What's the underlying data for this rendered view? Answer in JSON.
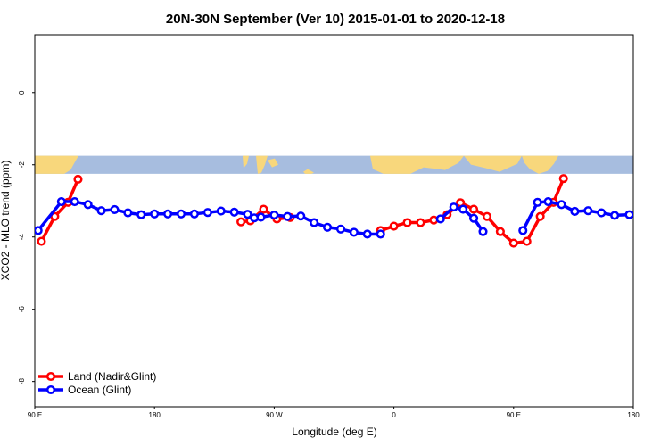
{
  "chart_data": {
    "type": "line",
    "title": "20N-30N September (Ver 10)   2015-01-01 to 2020-12-18",
    "xlabel": "Longitude (deg E)",
    "ylabel": "XCO2 - MLO trend (ppm)",
    "xlim": [
      90,
      540
    ],
    "ylim": [
      -8.7,
      1.6
    ],
    "x_ticks": [
      {
        "value": 90,
        "label": "90 E"
      },
      {
        "value": 180,
        "label": "180"
      },
      {
        "value": 270,
        "label": "90 W"
      },
      {
        "value": 360,
        "label": "0"
      },
      {
        "value": 450,
        "label": "90 E"
      },
      {
        "value": 540,
        "label": "180"
      }
    ],
    "y_ticks": [
      {
        "value": 0,
        "label": "0"
      },
      {
        "value": -2,
        "label": "-2"
      },
      {
        "value": -4,
        "label": "-4"
      },
      {
        "value": -6,
        "label": "-6"
      },
      {
        "value": -8,
        "label": "-8"
      }
    ],
    "map_band": {
      "ymin": -2.25,
      "ymax": -1.75,
      "ocean_color": "#a7bddf",
      "land_color": "#f8d77c"
    },
    "legend_position": "bottom-left",
    "series": [
      {
        "name": "Land (Nadir&Glint)",
        "color": "#ff0000",
        "segments": [
          [
            [
              95,
              -4.12
            ],
            [
              105,
              -3.43
            ],
            [
              115,
              -3.04
            ],
            [
              122.5,
              -2.4
            ]
          ],
          [
            [
              245,
              -3.58
            ],
            [
              252,
              -3.55
            ],
            [
              262,
              -3.23
            ],
            [
              272,
              -3.5
            ],
            [
              282,
              -3.46
            ]
          ],
          [
            [
              350,
              -3.82
            ],
            [
              360,
              -3.7
            ],
            [
              370,
              -3.6
            ],
            [
              380,
              -3.6
            ],
            [
              390,
              -3.53
            ],
            [
              400,
              -3.38
            ],
            [
              410,
              -3.05
            ],
            [
              420,
              -3.23
            ],
            [
              430,
              -3.43
            ],
            [
              440,
              -3.85
            ],
            [
              450,
              -4.17
            ],
            [
              460,
              -4.12
            ],
            [
              470,
              -3.43
            ],
            [
              480,
              -3.04
            ],
            [
              487.5,
              -2.38
            ]
          ]
        ]
      },
      {
        "name": "Ocean (Glint)",
        "color": "#0000ff",
        "segments": [
          [
            [
              92.5,
              -3.82
            ],
            [
              110,
              -3.02
            ],
            [
              120,
              -3.02
            ],
            [
              130,
              -3.1
            ],
            [
              140,
              -3.27
            ],
            [
              150,
              -3.24
            ],
            [
              160,
              -3.33
            ],
            [
              170,
              -3.38
            ],
            [
              180,
              -3.36
            ],
            [
              190,
              -3.36
            ],
            [
              200,
              -3.36
            ],
            [
              210,
              -3.36
            ],
            [
              220,
              -3.32
            ],
            [
              230,
              -3.28
            ],
            [
              240,
              -3.31
            ],
            [
              250,
              -3.37
            ],
            [
              255,
              -3.47
            ],
            [
              260,
              -3.45
            ],
            [
              270,
              -3.39
            ],
            [
              280,
              -3.43
            ],
            [
              290,
              -3.42
            ],
            [
              300,
              -3.6
            ],
            [
              310,
              -3.73
            ],
            [
              320,
              -3.78
            ],
            [
              330,
              -3.87
            ],
            [
              340,
              -3.92
            ],
            [
              350,
              -3.92
            ]
          ],
          [
            [
              395,
              -3.5
            ],
            [
              405,
              -3.17
            ],
            [
              412,
              -3.23
            ],
            [
              420,
              -3.48
            ],
            [
              427,
              -3.85
            ]
          ],
          [
            [
              457,
              -3.82
            ],
            [
              468,
              -3.04
            ],
            [
              476,
              -3.02
            ],
            [
              486,
              -3.1
            ],
            [
              496,
              -3.29
            ],
            [
              506,
              -3.27
            ],
            [
              516,
              -3.33
            ],
            [
              526,
              -3.4
            ],
            [
              537,
              -3.38
            ]
          ]
        ]
      }
    ]
  }
}
